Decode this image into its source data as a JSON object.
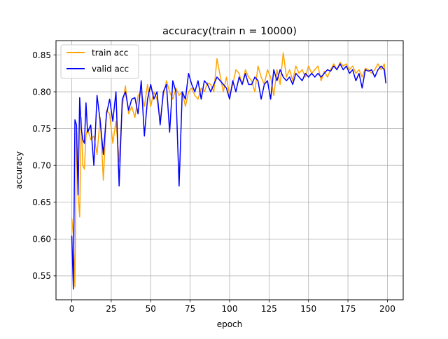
{
  "chart_data": {
    "type": "line",
    "title": "accuracy(train n = 10000)",
    "xlabel": "epoch",
    "ylabel": "accuracy",
    "xlim": [
      -10,
      210
    ],
    "ylim": [
      0.5175,
      0.8695
    ],
    "xticks": [
      0,
      25,
      50,
      75,
      100,
      125,
      150,
      175,
      200
    ],
    "xtick_labels": [
      "0",
      "25",
      "50",
      "75",
      "100",
      "125",
      "150",
      "175",
      "200"
    ],
    "yticks": [
      0.55,
      0.6,
      0.65,
      0.7,
      0.75,
      0.8,
      0.85
    ],
    "ytick_labels": [
      "0.55",
      "0.60",
      "0.65",
      "0.70",
      "0.75",
      "0.80",
      "0.85"
    ],
    "grid": true,
    "legend_position": "upper-left",
    "series": [
      {
        "name": "train acc",
        "color": "#ffa500",
        "x": [
          0,
          1,
          2,
          3,
          4,
          5,
          6,
          7,
          8,
          9,
          10,
          12,
          14,
          16,
          18,
          20,
          22,
          24,
          26,
          28,
          30,
          32,
          34,
          36,
          38,
          40,
          42,
          44,
          46,
          48,
          50,
          52,
          54,
          56,
          58,
          60,
          62,
          64,
          66,
          68,
          70,
          72,
          74,
          76,
          78,
          80,
          82,
          84,
          86,
          88,
          90,
          92,
          94,
          96,
          98,
          100,
          102,
          104,
          106,
          108,
          110,
          112,
          114,
          116,
          118,
          120,
          122,
          124,
          126,
          128,
          130,
          132,
          134,
          136,
          138,
          140,
          142,
          144,
          146,
          148,
          150,
          152,
          154,
          156,
          158,
          160,
          162,
          164,
          166,
          168,
          170,
          172,
          174,
          176,
          178,
          180,
          182,
          184,
          186,
          188,
          190,
          192,
          194,
          196,
          198,
          199
        ],
        "values": [
          0.628,
          0.605,
          0.535,
          0.745,
          0.66,
          0.63,
          0.765,
          0.7,
          0.695,
          0.74,
          0.75,
          0.735,
          0.74,
          0.715,
          0.765,
          0.68,
          0.775,
          0.77,
          0.73,
          0.76,
          0.705,
          0.78,
          0.808,
          0.77,
          0.78,
          0.765,
          0.795,
          0.8,
          0.78,
          0.81,
          0.78,
          0.8,
          0.79,
          0.76,
          0.795,
          0.815,
          0.8,
          0.79,
          0.805,
          0.795,
          0.8,
          0.78,
          0.8,
          0.805,
          0.795,
          0.79,
          0.805,
          0.8,
          0.812,
          0.81,
          0.8,
          0.845,
          0.822,
          0.8,
          0.82,
          0.795,
          0.81,
          0.83,
          0.825,
          0.81,
          0.83,
          0.82,
          0.815,
          0.8,
          0.835,
          0.82,
          0.81,
          0.83,
          0.82,
          0.795,
          0.83,
          0.81,
          0.853,
          0.82,
          0.83,
          0.815,
          0.835,
          0.825,
          0.83,
          0.82,
          0.835,
          0.825,
          0.83,
          0.835,
          0.815,
          0.828,
          0.82,
          0.83,
          0.838,
          0.83,
          0.84,
          0.835,
          0.838,
          0.83,
          0.835,
          0.825,
          0.83,
          0.82,
          0.832,
          0.83,
          0.825,
          0.83,
          0.838,
          0.83,
          0.838,
          0.812
        ]
      },
      {
        "name": "valid acc",
        "color": "#0000ff",
        "x": [
          0,
          1,
          2,
          3,
          4,
          5,
          6,
          7,
          8,
          9,
          10,
          12,
          14,
          16,
          18,
          20,
          22,
          24,
          26,
          28,
          30,
          32,
          34,
          36,
          38,
          40,
          42,
          44,
          46,
          48,
          50,
          52,
          54,
          56,
          58,
          60,
          62,
          64,
          66,
          68,
          70,
          72,
          74,
          76,
          78,
          80,
          82,
          84,
          86,
          88,
          90,
          92,
          94,
          96,
          98,
          100,
          102,
          104,
          106,
          108,
          110,
          112,
          114,
          116,
          118,
          120,
          122,
          124,
          126,
          128,
          130,
          132,
          134,
          136,
          138,
          140,
          142,
          144,
          146,
          148,
          150,
          152,
          154,
          156,
          158,
          160,
          162,
          164,
          166,
          168,
          170,
          172,
          174,
          176,
          178,
          180,
          182,
          184,
          186,
          188,
          190,
          192,
          194,
          196,
          198,
          199
        ],
        "values": [
          0.604,
          0.532,
          0.762,
          0.755,
          0.66,
          0.792,
          0.75,
          0.735,
          0.73,
          0.785,
          0.745,
          0.755,
          0.7,
          0.795,
          0.76,
          0.715,
          0.77,
          0.79,
          0.76,
          0.8,
          0.672,
          0.79,
          0.8,
          0.775,
          0.79,
          0.792,
          0.77,
          0.815,
          0.74,
          0.79,
          0.81,
          0.79,
          0.8,
          0.755,
          0.8,
          0.81,
          0.745,
          0.815,
          0.8,
          0.672,
          0.8,
          0.79,
          0.825,
          0.81,
          0.8,
          0.815,
          0.79,
          0.815,
          0.81,
          0.8,
          0.81,
          0.82,
          0.815,
          0.81,
          0.805,
          0.79,
          0.815,
          0.8,
          0.82,
          0.81,
          0.825,
          0.81,
          0.81,
          0.82,
          0.815,
          0.79,
          0.81,
          0.815,
          0.79,
          0.83,
          0.815,
          0.83,
          0.82,
          0.815,
          0.82,
          0.81,
          0.825,
          0.82,
          0.815,
          0.825,
          0.82,
          0.825,
          0.82,
          0.825,
          0.82,
          0.825,
          0.83,
          0.828,
          0.835,
          0.83,
          0.838,
          0.83,
          0.835,
          0.825,
          0.83,
          0.815,
          0.825,
          0.805,
          0.83,
          0.828,
          0.83,
          0.82,
          0.83,
          0.835,
          0.83,
          0.812
        ]
      }
    ]
  }
}
